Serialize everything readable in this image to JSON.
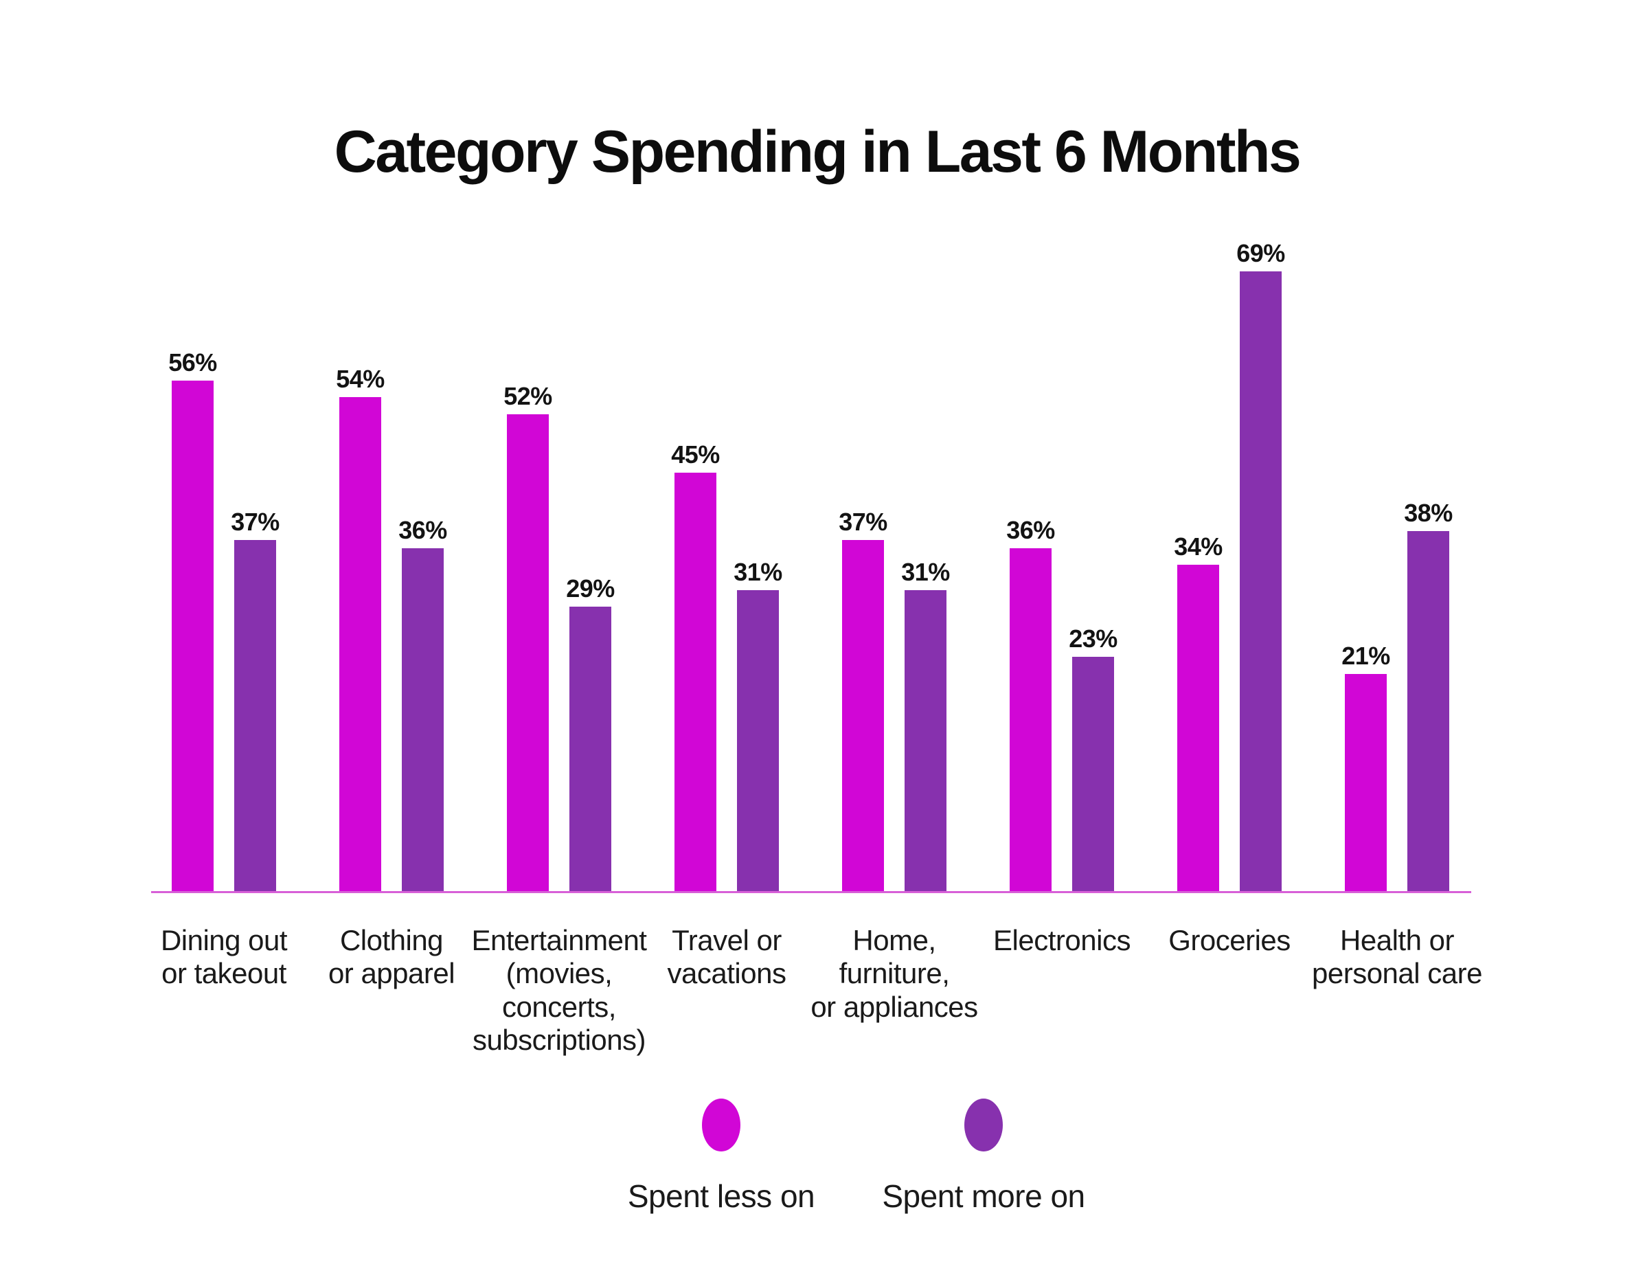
{
  "title": "Category Spending in Last 6 Months",
  "legend": [
    {
      "label": "Spent less on",
      "color": "#D106D6"
    },
    {
      "label": "Spent more on",
      "color": "#8731AE"
    }
  ],
  "chart_data": {
    "type": "bar",
    "title": "Category Spending in Last 6 Months",
    "categories": [
      "Dining out\nor takeout",
      "Clothing\nor apparel",
      "Entertainment\n(movies,\nconcerts,\nsubscriptions)",
      "Travel or\nvacations",
      "Home,\nfurniture,\nor appliances",
      "Electronics",
      "Groceries",
      "Health or\npersonal care"
    ],
    "series": [
      {
        "name": "Spent less on",
        "color": "#D106D6",
        "values": [
          56,
          54,
          52,
          45,
          37,
          36,
          34,
          21
        ]
      },
      {
        "name": "Spent more on",
        "color": "#8731AE",
        "values": [
          37,
          36,
          29,
          31,
          31,
          23,
          69,
          38
        ]
      }
    ],
    "value_label_suffix": "%",
    "value_labels_shown": true,
    "y_axis_shown": false,
    "gridlines_shown": false,
    "axis_line_color": "#D75FD7",
    "legend_position": "bottom"
  }
}
